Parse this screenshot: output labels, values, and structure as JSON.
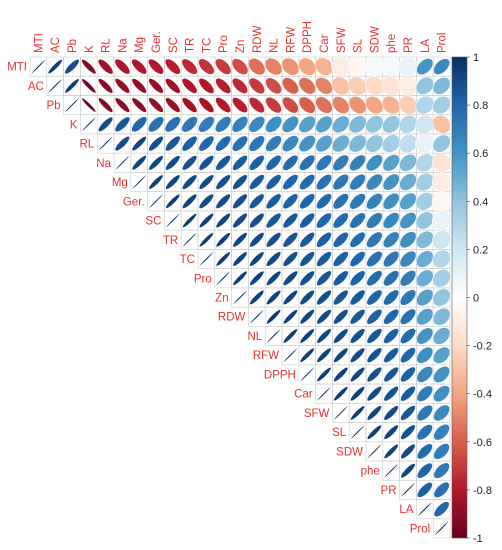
{
  "chart_data": {
    "type": "heatmap",
    "subtype": "correlation-ellipse-upper",
    "variables": [
      "MTI",
      "AC",
      "Pb",
      "K",
      "RL",
      "Na",
      "Mg",
      "Ger.",
      "SC",
      "TR",
      "TC",
      "Pro",
      "Zn",
      "RDW",
      "NL",
      "RFW",
      "DPPH",
      "Car",
      "SFW",
      "SL",
      "SDW",
      "phe",
      "PR",
      "LA",
      "Prol"
    ],
    "correlations": [
      [
        1.0,
        0.95,
        0.9,
        -0.92,
        -0.85,
        -0.82,
        -0.82,
        -0.8,
        -0.78,
        -0.75,
        -0.72,
        -0.7,
        -0.65,
        -0.55,
        -0.5,
        -0.45,
        -0.4,
        -0.35,
        -0.1,
        -0.05,
        0.05,
        0.05,
        0.1,
        0.6,
        0.65
      ],
      [
        0.95,
        1.0,
        0.95,
        -0.95,
        -0.9,
        -0.88,
        -0.88,
        -0.87,
        -0.85,
        -0.82,
        -0.8,
        -0.78,
        -0.75,
        -0.7,
        -0.65,
        -0.6,
        -0.55,
        -0.5,
        -0.3,
        -0.25,
        -0.2,
        -0.15,
        -0.1,
        0.4,
        0.45
      ],
      [
        0.9,
        0.95,
        1.0,
        -0.97,
        -0.92,
        -0.9,
        -0.9,
        -0.88,
        -0.87,
        -0.85,
        -0.83,
        -0.8,
        -0.78,
        -0.75,
        -0.7,
        -0.65,
        -0.6,
        -0.55,
        -0.5,
        -0.45,
        -0.4,
        -0.35,
        -0.25,
        0.3,
        0.35
      ],
      [
        -0.92,
        -0.95,
        -0.97,
        1.0,
        0.9,
        0.85,
        0.8,
        0.75,
        0.75,
        0.72,
        0.7,
        0.7,
        0.68,
        0.65,
        0.62,
        0.6,
        0.55,
        0.55,
        0.5,
        0.45,
        0.4,
        0.4,
        0.3,
        0.2,
        -0.3
      ],
      [
        -0.85,
        -0.9,
        -0.92,
        0.9,
        1.0,
        0.9,
        0.92,
        0.88,
        0.85,
        0.82,
        0.8,
        0.78,
        0.75,
        0.72,
        0.7,
        0.65,
        0.6,
        0.55,
        0.5,
        0.45,
        0.4,
        0.35,
        0.25,
        0.1,
        0.4
      ],
      [
        -0.82,
        -0.88,
        -0.9,
        0.85,
        0.9,
        1.0,
        0.93,
        0.92,
        0.9,
        0.88,
        0.87,
        0.85,
        0.84,
        0.82,
        0.8,
        0.78,
        0.75,
        0.72,
        0.7,
        0.68,
        0.62,
        0.55,
        0.45,
        0.3,
        -0.15
      ],
      [
        -0.82,
        -0.88,
        -0.9,
        0.8,
        0.92,
        0.93,
        1.0,
        0.94,
        0.92,
        0.9,
        0.9,
        0.88,
        0.87,
        0.85,
        0.83,
        0.8,
        0.78,
        0.75,
        0.72,
        0.7,
        0.65,
        0.6,
        0.5,
        0.35,
        -0.1
      ],
      [
        -0.8,
        -0.87,
        -0.88,
        0.75,
        0.88,
        0.92,
        0.94,
        1.0,
        0.95,
        0.92,
        0.9,
        0.89,
        0.88,
        0.86,
        0.84,
        0.82,
        0.8,
        0.78,
        0.75,
        0.72,
        0.68,
        0.62,
        0.55,
        0.35,
        -0.05
      ],
      [
        -0.78,
        -0.85,
        -0.87,
        0.75,
        0.85,
        0.9,
        0.92,
        0.95,
        1.0,
        0.96,
        0.94,
        0.92,
        0.9,
        0.88,
        0.86,
        0.85,
        0.83,
        0.8,
        0.78,
        0.75,
        0.7,
        0.65,
        0.6,
        0.4,
        0.1
      ],
      [
        -0.75,
        -0.82,
        -0.85,
        0.72,
        0.82,
        0.88,
        0.9,
        0.92,
        0.96,
        1.0,
        0.96,
        0.94,
        0.92,
        0.9,
        0.88,
        0.86,
        0.85,
        0.82,
        0.8,
        0.78,
        0.72,
        0.68,
        0.62,
        0.45,
        0.2
      ],
      [
        -0.72,
        -0.8,
        -0.83,
        0.7,
        0.8,
        0.87,
        0.9,
        0.9,
        0.94,
        0.96,
        1.0,
        0.95,
        0.93,
        0.92,
        0.9,
        0.88,
        0.86,
        0.84,
        0.82,
        0.8,
        0.75,
        0.72,
        0.65,
        0.5,
        0.3
      ],
      [
        -0.7,
        -0.78,
        -0.8,
        0.7,
        0.78,
        0.85,
        0.88,
        0.89,
        0.92,
        0.94,
        0.95,
        1.0,
        0.95,
        0.93,
        0.92,
        0.9,
        0.88,
        0.86,
        0.84,
        0.82,
        0.78,
        0.75,
        0.7,
        0.5,
        0.35
      ],
      [
        -0.65,
        -0.75,
        -0.78,
        0.68,
        0.75,
        0.84,
        0.87,
        0.88,
        0.9,
        0.92,
        0.93,
        0.95,
        1.0,
        0.94,
        0.93,
        0.92,
        0.9,
        0.88,
        0.86,
        0.84,
        0.8,
        0.78,
        0.72,
        0.55,
        0.4
      ],
      [
        -0.55,
        -0.7,
        -0.75,
        0.65,
        0.72,
        0.82,
        0.85,
        0.86,
        0.88,
        0.9,
        0.92,
        0.93,
        0.94,
        1.0,
        0.95,
        0.94,
        0.92,
        0.9,
        0.88,
        0.86,
        0.82,
        0.8,
        0.75,
        0.55,
        0.45
      ],
      [
        -0.5,
        -0.65,
        -0.7,
        0.62,
        0.7,
        0.8,
        0.83,
        0.84,
        0.86,
        0.88,
        0.9,
        0.92,
        0.93,
        0.95,
        1.0,
        0.95,
        0.94,
        0.92,
        0.9,
        0.88,
        0.85,
        0.82,
        0.78,
        0.6,
        0.5
      ],
      [
        -0.45,
        -0.6,
        -0.65,
        0.6,
        0.65,
        0.78,
        0.8,
        0.82,
        0.85,
        0.86,
        0.88,
        0.9,
        0.92,
        0.94,
        0.95,
        1.0,
        0.95,
        0.93,
        0.92,
        0.9,
        0.87,
        0.84,
        0.8,
        0.62,
        0.55
      ],
      [
        -0.4,
        -0.55,
        -0.6,
        0.55,
        0.6,
        0.75,
        0.78,
        0.8,
        0.83,
        0.85,
        0.86,
        0.88,
        0.9,
        0.92,
        0.94,
        0.95,
        1.0,
        0.95,
        0.93,
        0.92,
        0.88,
        0.86,
        0.82,
        0.65,
        0.6
      ],
      [
        -0.35,
        -0.5,
        -0.55,
        0.55,
        0.55,
        0.72,
        0.75,
        0.78,
        0.8,
        0.82,
        0.84,
        0.86,
        0.88,
        0.9,
        0.92,
        0.93,
        0.95,
        1.0,
        0.95,
        0.93,
        0.9,
        0.88,
        0.84,
        0.7,
        0.62
      ],
      [
        -0.1,
        -0.3,
        -0.5,
        0.5,
        0.5,
        0.7,
        0.72,
        0.75,
        0.78,
        0.8,
        0.82,
        0.84,
        0.86,
        0.88,
        0.9,
        0.92,
        0.93,
        0.95,
        1.0,
        0.95,
        0.92,
        0.9,
        0.86,
        0.72,
        0.65
      ],
      [
        -0.05,
        -0.25,
        -0.45,
        0.45,
        0.45,
        0.68,
        0.7,
        0.72,
        0.75,
        0.78,
        0.8,
        0.82,
        0.84,
        0.86,
        0.88,
        0.9,
        0.92,
        0.93,
        0.95,
        1.0,
        0.94,
        0.92,
        0.88,
        0.75,
        0.68
      ],
      [
        0.05,
        -0.2,
        -0.4,
        0.4,
        0.4,
        0.62,
        0.65,
        0.68,
        0.7,
        0.72,
        0.75,
        0.78,
        0.8,
        0.82,
        0.85,
        0.87,
        0.88,
        0.9,
        0.92,
        0.94,
        1.0,
        0.94,
        0.9,
        0.78,
        0.7
      ],
      [
        0.05,
        -0.15,
        -0.35,
        0.4,
        0.35,
        0.55,
        0.6,
        0.62,
        0.65,
        0.68,
        0.72,
        0.75,
        0.78,
        0.8,
        0.82,
        0.84,
        0.86,
        0.88,
        0.9,
        0.92,
        0.94,
        1.0,
        0.92,
        0.8,
        0.72
      ],
      [
        0.1,
        -0.1,
        -0.25,
        0.3,
        0.25,
        0.45,
        0.5,
        0.55,
        0.6,
        0.62,
        0.65,
        0.7,
        0.72,
        0.75,
        0.78,
        0.8,
        0.82,
        0.84,
        0.86,
        0.88,
        0.9,
        0.92,
        1.0,
        0.82,
        0.75
      ],
      [
        0.6,
        0.4,
        0.3,
        0.2,
        0.1,
        0.3,
        0.35,
        0.35,
        0.4,
        0.45,
        0.5,
        0.5,
        0.55,
        0.55,
        0.6,
        0.62,
        0.65,
        0.7,
        0.72,
        0.75,
        0.78,
        0.8,
        0.82,
        1.0,
        0.8
      ],
      [
        0.65,
        0.45,
        0.35,
        -0.3,
        0.4,
        -0.15,
        -0.1,
        -0.05,
        0.1,
        0.2,
        0.3,
        0.35,
        0.4,
        0.45,
        0.5,
        0.55,
        0.6,
        0.62,
        0.65,
        0.68,
        0.7,
        0.72,
        0.75,
        0.8,
        1.0
      ]
    ],
    "colorbar": {
      "min": -1,
      "max": 1,
      "ticks": [
        "1",
        "0.8",
        "0.6",
        "0.4",
        "0.2",
        "0",
        "-0.2",
        "-0.4",
        "-0.6",
        "-0.8",
        "-1"
      ]
    },
    "colors": {
      "negative_end": "#67001f",
      "neutral": "#ffffff",
      "positive_end": "#053061",
      "label_color": "#e8312e",
      "grid_color": "#cccccc"
    },
    "title": "",
    "xlabel": "",
    "ylabel": ""
  }
}
